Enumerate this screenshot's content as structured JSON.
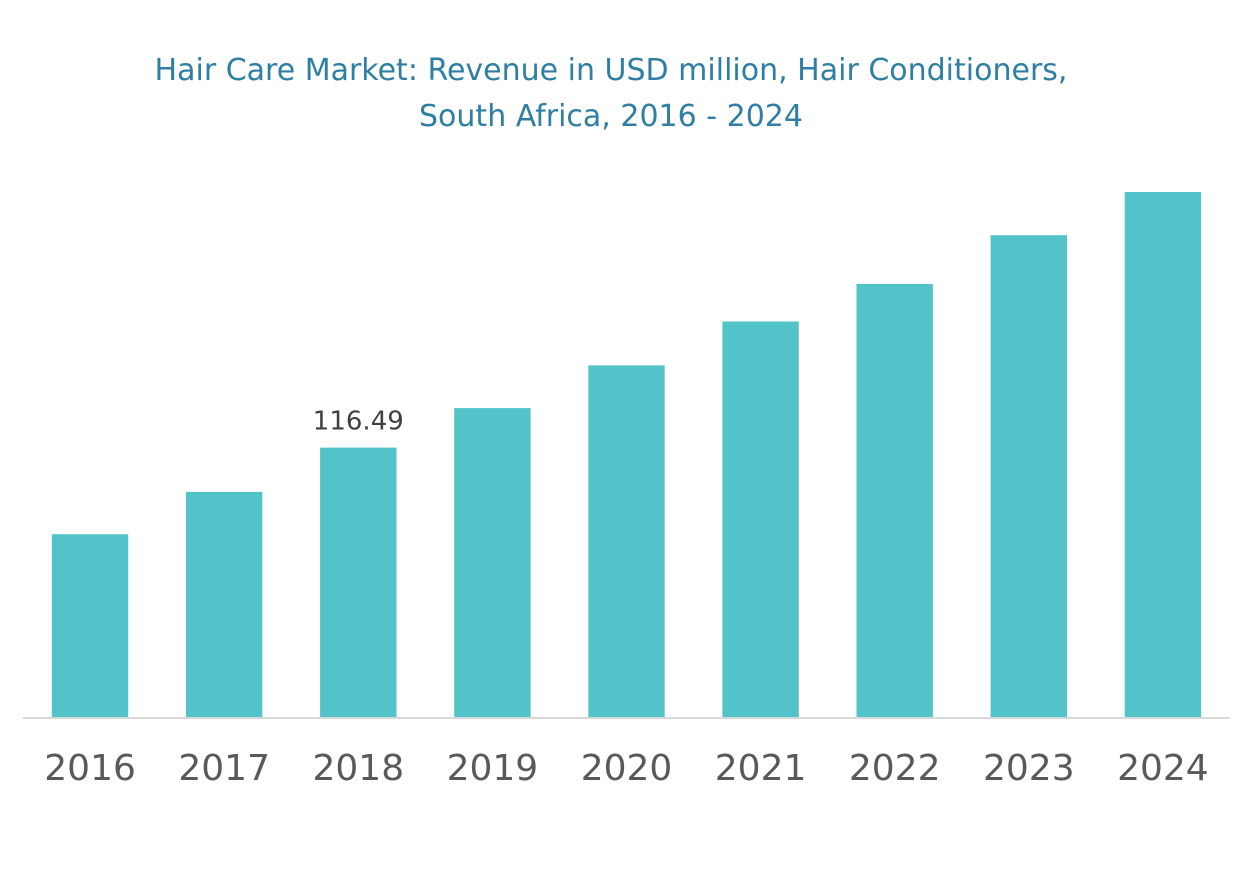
{
  "chart_data": {
    "type": "bar",
    "title_line1": "Hair Care Market: Revenue in USD million, Hair Conditioners,",
    "title_line2": "South Africa, 2016 - 2024",
    "categories": [
      "2016",
      "2017",
      "2018",
      "2019",
      "2020",
      "2021",
      "2022",
      "2023",
      "2024"
    ],
    "values": [
      79.2,
      97.4,
      116.49,
      133.5,
      151.9,
      170.8,
      187.0,
      208.0,
      226.6
    ],
    "data_labels": [
      "",
      "",
      "116.49",
      "",
      "",
      "",
      "",
      "",
      ""
    ],
    "xlabel": "",
    "ylabel": "",
    "ylim": [
      0,
      240
    ],
    "grid": false,
    "bar_color": "#52c3c8",
    "title_color": "#2e7fa3"
  }
}
